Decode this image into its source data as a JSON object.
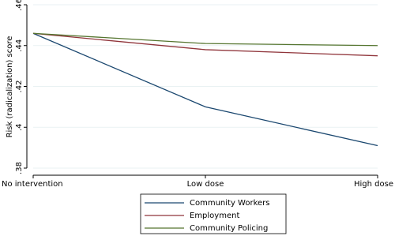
{
  "chart_data": {
    "type": "line",
    "y_label": "Risk (radicalization) score",
    "categories": [
      "No intervention",
      "Low dose",
      "High dose"
    ],
    "series": [
      {
        "name": "Community Workers",
        "color": "#1a476f",
        "values": [
          0.446,
          0.41,
          0.391
        ]
      },
      {
        "name": "Employment",
        "color": "#90353b",
        "values": [
          0.446,
          0.438,
          0.435
        ]
      },
      {
        "name": "Community Policing",
        "color": "#55752f",
        "values": [
          0.446,
          0.441,
          0.44
        ]
      }
    ],
    "ylim": [
      0.38,
      0.46
    ],
    "yticks": [
      {
        "value": 0.38,
        "label": ".38"
      },
      {
        "value": 0.4,
        "label": ".4"
      },
      {
        "value": 0.42,
        "label": ".42"
      },
      {
        "value": 0.44,
        "label": ".44"
      },
      {
        "value": 0.46,
        "label": ".46"
      }
    ],
    "grid": true
  }
}
